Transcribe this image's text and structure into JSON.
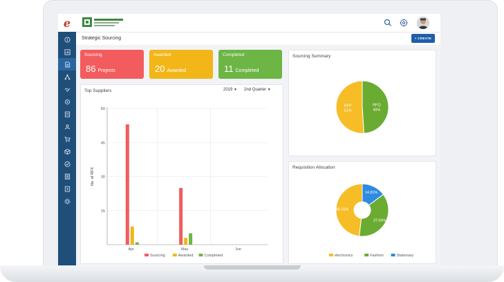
{
  "app": {
    "page_title": "Strategic Sourcing",
    "create_label": "+ CREATE"
  },
  "colors": {
    "sidebar": "#1f4e79",
    "sourcing": "#f25c5e",
    "awarded": "#f2b618",
    "completed": "#6db545",
    "create_button": "#1f5ea8",
    "rfp": "#f6bd26",
    "rfq": "#6aab31",
    "electronics": "#f6bd26",
    "fashion": "#6aab31",
    "stationary": "#2d8be0"
  },
  "sidebar": {
    "items": [
      {
        "icon": "info-icon"
      },
      {
        "icon": "dashboard-icon"
      },
      {
        "icon": "document-icon"
      },
      {
        "icon": "hierarchy-icon"
      },
      {
        "icon": "handshake-icon"
      },
      {
        "icon": "settings-icon"
      },
      {
        "icon": "report-icon"
      },
      {
        "icon": "user-box-icon"
      },
      {
        "icon": "cart-icon"
      },
      {
        "icon": "box-icon"
      },
      {
        "icon": "check-circle-icon"
      },
      {
        "icon": "list-icon"
      },
      {
        "icon": "invoice-icon"
      },
      {
        "icon": "gear-icon"
      }
    ]
  },
  "topbar_icons": [
    "search-icon",
    "globe-icon",
    "bell-icon",
    "avatar"
  ],
  "cards": {
    "sourcing": {
      "title": "Sourcing",
      "count": "86",
      "unit": "Projects"
    },
    "awarded": {
      "title": "Awarded",
      "count": "20",
      "unit": "Awarded"
    },
    "completed": {
      "title": "Completed",
      "count": "11",
      "unit": "Completed"
    }
  },
  "top_suppliers": {
    "title": "Top Suppliers",
    "year": "2019",
    "quarter": "2nd Quarter"
  },
  "sourcing_summary": {
    "title": "Sourcing Summary"
  },
  "requisition_allocation": {
    "title": "Requisition Allocation"
  },
  "chart_data": [
    {
      "type": "bar",
      "title": "",
      "xlabel": "",
      "ylabel": "No. of RFX",
      "ylim": [
        0,
        60
      ],
      "yticks": [
        "60",
        "45",
        "30",
        "15"
      ],
      "categories": [
        "Apr",
        "May",
        "Jun"
      ],
      "series": [
        {
          "name": "Sourcing",
          "values": [
            53,
            25,
            0
          ]
        },
        {
          "name": "Awarded",
          "values": [
            8,
            3,
            0
          ]
        },
        {
          "name": "Completed",
          "values": [
            1,
            5,
            0
          ]
        }
      ],
      "grid": true,
      "legend": "bottom"
    },
    {
      "type": "pie",
      "slices": [
        {
          "name": "RFQ",
          "label": "49%",
          "value": 49
        },
        {
          "name": "RFP",
          "label": "51%",
          "value": 51
        }
      ]
    },
    {
      "type": "pie",
      "donut": true,
      "slices": [
        {
          "name": "Stationary",
          "label": "14.81%",
          "value": 14.81
        },
        {
          "name": "Fashion",
          "label": "37.04%",
          "value": 37.04
        },
        {
          "name": "electronics",
          "label": "48.15%",
          "value": 48.15
        }
      ],
      "legend": "bottom"
    }
  ]
}
